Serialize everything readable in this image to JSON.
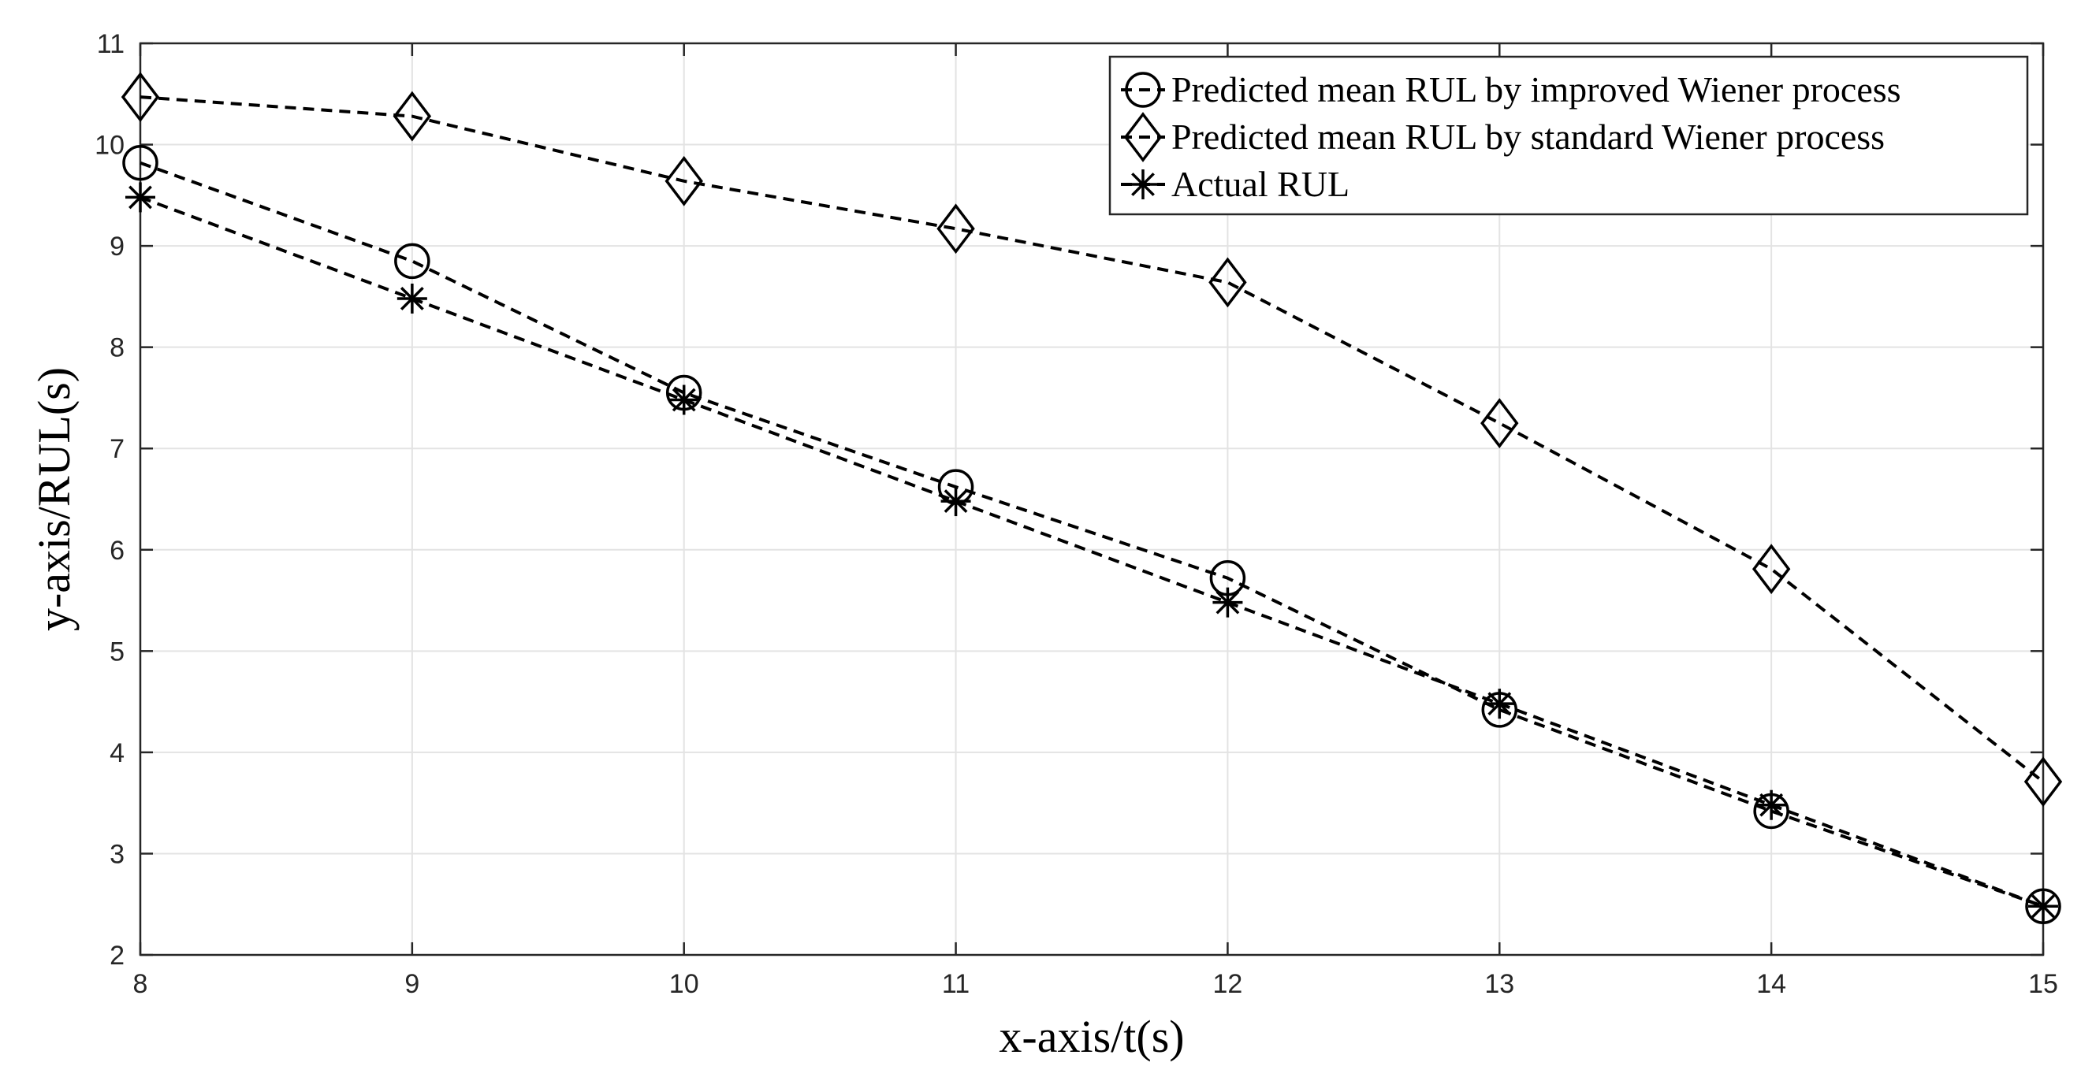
{
  "chart_data": {
    "type": "line",
    "title": "",
    "xlabel": "x-axis/t(s)",
    "ylabel": "y-axis/RUL(s)",
    "xlim": [
      8,
      15
    ],
    "ylim": [
      2,
      11
    ],
    "xticks": [
      "8",
      "9",
      "10",
      "11",
      "12",
      "13",
      "14",
      "15"
    ],
    "yticks": [
      "2",
      "3",
      "4",
      "5",
      "6",
      "7",
      "8",
      "9",
      "10",
      "11"
    ],
    "grid": true,
    "legend_position": "top-right",
    "x": [
      8,
      9,
      10,
      11,
      12,
      13,
      14,
      15
    ],
    "series": [
      {
        "name": "Predicted mean RUL by improved Wiener process",
        "marker": "circle",
        "line_style": "dashed",
        "values": [
          9.82,
          8.85,
          7.55,
          6.62,
          5.72,
          4.42,
          3.42,
          2.48
        ]
      },
      {
        "name": "Predicted mean RUL by standard Wiener process",
        "marker": "diamond",
        "line_style": "dashed",
        "values": [
          10.47,
          10.28,
          9.64,
          9.17,
          8.64,
          7.25,
          5.81,
          3.71
        ]
      },
      {
        "name": "Actual RUL",
        "marker": "asterisk",
        "line_style": "dashed",
        "values": [
          9.48,
          8.48,
          7.48,
          6.48,
          5.48,
          4.48,
          3.48,
          2.48
        ]
      }
    ],
    "colors": {
      "line": "#000000",
      "grid": "#e3e3e3",
      "axis": "#262626",
      "background": "#ffffff"
    }
  }
}
